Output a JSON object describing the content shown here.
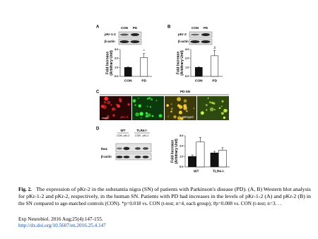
{
  "figure": {
    "panels": [
      "A",
      "B",
      "C",
      "D"
    ],
    "blots": [
      {
        "columns": [
          "CON",
          "PD"
        ],
        "rows": [
          "pKr-1-2",
          "β-actin"
        ]
      },
      {
        "columns": [
          "CON",
          "PD"
        ],
        "rows": [
          "pKr-2",
          "β-actin"
        ]
      },
      {
        "groups": [
          "WT",
          "TLR4-/-"
        ],
        "columns": [
          "CON",
          "pKr-2",
          "CON",
          "pKr-2"
        ],
        "rows": [
          "Iba1",
          "β-actin"
        ]
      }
    ],
    "imaging": {
      "header": "PD-SN",
      "labels": [
        "pKr-2",
        "Merged"
      ]
    }
  },
  "chart_data": [
    {
      "type": "bar",
      "ylabel": [
        "Fold Increase",
        "(Arbitrary Unit)"
      ],
      "categories": [
        "CON",
        "PD"
      ],
      "values": [
        1.0,
        2.1
      ],
      "errors": [
        0.05,
        0.45
      ],
      "colors": [
        "#111111",
        "#ffffff"
      ],
      "annotation": "*",
      "ylim": [
        0,
        3
      ],
      "yticks": [
        {
          "value": 0,
          "label": "0.0"
        },
        {
          "value": 1,
          "label": "1.0"
        },
        {
          "value": 2,
          "label": "2.0"
        },
        {
          "value": 3,
          "label": "3.0"
        }
      ]
    },
    {
      "type": "bar",
      "ylabel": [
        "Fold Increase",
        "(Arbitrary Unit)"
      ],
      "categories": [
        "CON",
        "PD"
      ],
      "values": [
        1.0,
        2.3
      ],
      "errors": [
        0.05,
        0.6
      ],
      "colors": [
        "#111111",
        "#ffffff"
      ],
      "annotation": "#",
      "ylim": [
        0,
        3
      ],
      "yticks": [
        {
          "value": 0,
          "label": "0.0"
        },
        {
          "value": 1,
          "label": "1.0"
        },
        {
          "value": 2,
          "label": "2.0"
        },
        {
          "value": 3,
          "label": "3.0"
        }
      ]
    },
    {
      "type": "bar",
      "ylabel": [
        "Fold Increase",
        "(Arbitrary Unit)"
      ],
      "categories": [
        "WT",
        "TLR4-/-"
      ],
      "series": [
        {
          "color": "#111111",
          "values": [
            1.0,
            1.35
          ],
          "errors": [
            0.15,
            0.15
          ]
        },
        {
          "color": "#ffffff",
          "values": [
            2.4,
            1.6
          ],
          "errors": [
            0.45,
            0.25
          ]
        }
      ],
      "ylim": [
        0,
        3
      ],
      "yticks": [
        {
          "value": 0,
          "label": "0.0"
        },
        {
          "value": 1,
          "label": "1.0"
        },
        {
          "value": 2,
          "label": "2.0"
        },
        {
          "value": 3,
          "label": "3.0"
        }
      ]
    }
  ],
  "caption": {
    "label": "Fig. 2.",
    "lines": [
      "The expression of pKr-2 in the substantia nigra (SN) of patients with Parkinson's disease (PD). (A, B) Western blot analysis",
      "for pKr-1-2 and pKr-2, respectively, in the human SN. Patients with PD had increases in the levels of pKr-1-2 (A) and pKr-2 (B) in",
      "the SN compared to age-matched controls (CON). *p=0.018 vs. CON (t-test; n=4, each group); #p=0.008 vs. CON (t-test; n=3. . ."
    ]
  },
  "citation": {
    "journal": "Exp Neurobiol. 2016 Aug;25(4):147-155.",
    "doi": "http://dx.doi.org/10.5607/en.2016.25.4.147"
  }
}
